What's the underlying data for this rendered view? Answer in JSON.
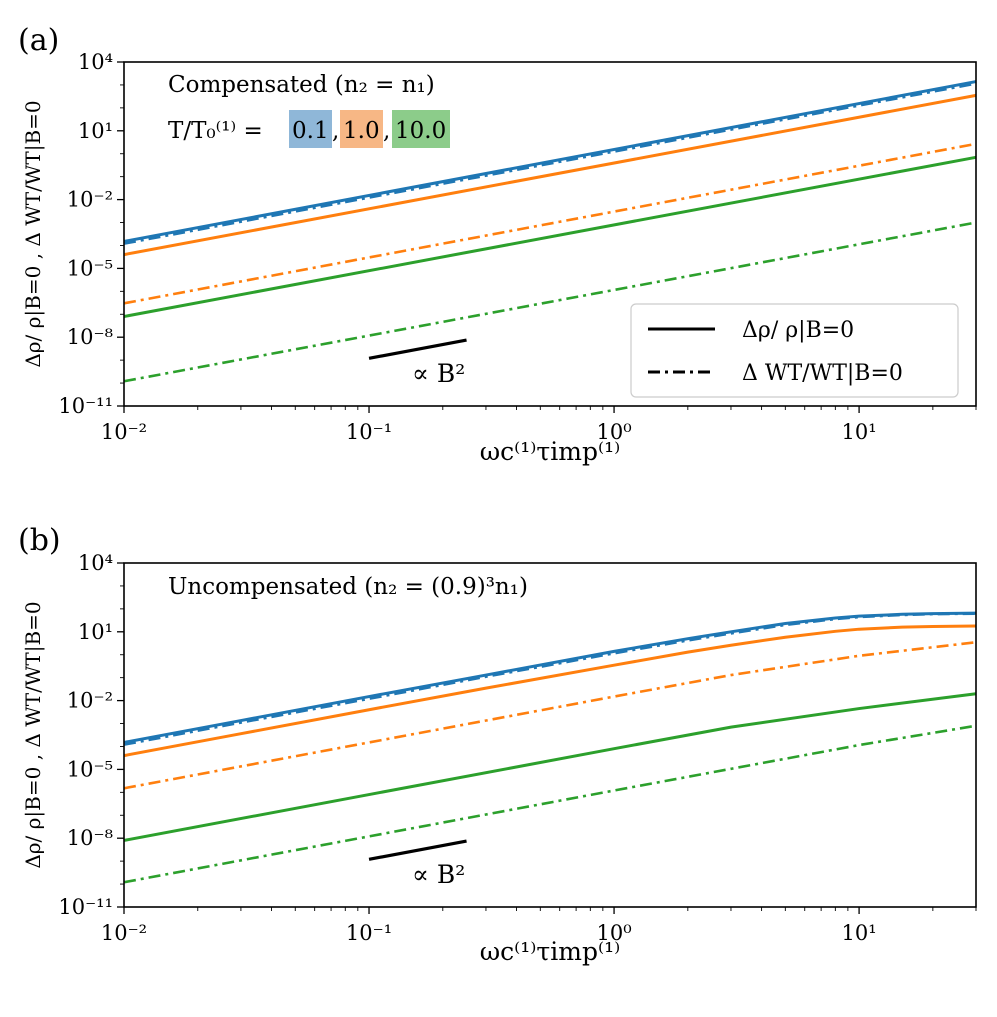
{
  "figure": {
    "panels": [
      {
        "id": "a",
        "panel_label": "(a)",
        "subtitle": "Compensated (n₂ = n₁)",
        "temperature_prefix": "T/T₀⁽¹⁾ =",
        "temperature_values": [
          "0.1",
          "1.0",
          "10.0"
        ],
        "legend_title": "",
        "legend": [
          {
            "label": "Δρ/ ρ|B=0",
            "style": "solid"
          },
          {
            "label": "Δ WT/WT|B=0",
            "style": "dashdot"
          }
        ],
        "reference_slope_label": "∝ B²"
      },
      {
        "id": "b",
        "panel_label": "(b)",
        "subtitle": "Uncompensated (n₂ = (0.9)³n₁)",
        "reference_slope_label": "∝ B²"
      }
    ]
  },
  "colors": {
    "blue": "#1f77b4",
    "orange": "#ff7f0e",
    "green": "#2ca02c",
    "blue_highlight": "#8fb7d8",
    "orange_highlight": "#f7b785",
    "green_highlight": "#8ccc8a"
  },
  "chart_data": [
    {
      "type": "line",
      "panel": "(a)",
      "xscale": "log",
      "yscale": "log",
      "xlabel": "ωc⁽¹⁾τimp⁽¹⁾",
      "ylabel": "Δρ/ ρ|B=0 , Δ WT/WT|B=0",
      "xlim": [
        0.01,
        30
      ],
      "ylim": [
        1e-11,
        10000
      ],
      "xticks": [
        0.01,
        0.1,
        1,
        10
      ],
      "xtick_labels": [
        "10⁻²",
        "10⁻¹",
        "10⁰",
        "10¹"
      ],
      "yticks": [
        1e-11,
        1e-08,
        1e-05,
        0.01,
        10,
        10000
      ],
      "ytick_labels": [
        "10⁻¹¹",
        "10⁻⁸",
        "10⁻⁵",
        "10⁻²",
        "10¹",
        "10⁴"
      ],
      "grid": false,
      "legend_position": "lower-right",
      "series": [
        {
          "color": "blue",
          "style": "solid",
          "x": [
            0.01,
            30
          ],
          "y": [
            0.00015,
            1400
          ]
        },
        {
          "color": "blue",
          "style": "dashdot",
          "x": [
            0.01,
            30
          ],
          "y": [
            0.00012,
            1150
          ]
        },
        {
          "color": "orange",
          "style": "solid",
          "x": [
            0.01,
            30
          ],
          "y": [
            4e-05,
            350
          ]
        },
        {
          "color": "orange",
          "style": "dashdot",
          "x": [
            0.01,
            30
          ],
          "y": [
            3e-07,
            2.7
          ]
        },
        {
          "color": "green",
          "style": "solid",
          "x": [
            0.01,
            30
          ],
          "y": [
            8e-08,
            0.7
          ]
        },
        {
          "color": "green",
          "style": "dashdot",
          "x": [
            0.01,
            30
          ],
          "y": [
            1.2e-10,
            0.001
          ]
        }
      ],
      "reference_segment": {
        "x": [
          0.1,
          0.25
        ],
        "y": [
          1.2e-09,
          7.5e-09
        ]
      }
    },
    {
      "type": "line",
      "panel": "(b)",
      "xscale": "log",
      "yscale": "log",
      "xlabel": "ωc⁽¹⁾τimp⁽¹⁾",
      "ylabel": "Δρ/ ρ|B=0 , Δ WT/WT|B=0",
      "xlim": [
        0.01,
        30
      ],
      "ylim": [
        1e-11,
        10000
      ],
      "xticks": [
        0.01,
        0.1,
        1,
        10
      ],
      "xtick_labels": [
        "10⁻²",
        "10⁻¹",
        "10⁰",
        "10¹"
      ],
      "yticks": [
        1e-11,
        1e-08,
        1e-05,
        0.01,
        10,
        10000
      ],
      "ytick_labels": [
        "10⁻¹¹",
        "10⁻⁸",
        "10⁻⁵",
        "10⁻²",
        "10¹",
        "10⁴"
      ],
      "grid": false,
      "series": [
        {
          "color": "blue",
          "style": "solid",
          "x": [
            0.01,
            0.03,
            0.1,
            0.3,
            1,
            2,
            3,
            5,
            8,
            10,
            15,
            20,
            30
          ],
          "y": [
            0.00015,
            0.00135,
            0.015,
            0.13,
            1.4,
            5,
            10,
            23,
            40,
            48,
            58,
            62,
            65
          ]
        },
        {
          "color": "blue",
          "style": "dashdot",
          "x": [
            0.01,
            0.03,
            0.1,
            0.3,
            1,
            2,
            3,
            5,
            8,
            10,
            15,
            20,
            30
          ],
          "y": [
            0.00012,
            0.0011,
            0.012,
            0.11,
            1.15,
            4.2,
            8.5,
            20,
            36,
            44,
            54,
            59,
            62
          ]
        },
        {
          "color": "orange",
          "style": "solid",
          "x": [
            0.01,
            0.03,
            0.1,
            0.3,
            1,
            2,
            3,
            5,
            8,
            10,
            15,
            20,
            30
          ],
          "y": [
            4e-05,
            0.00036,
            0.004,
            0.035,
            0.35,
            1.3,
            2.6,
            5.8,
            10.5,
            13,
            16,
            17,
            18
          ]
        },
        {
          "color": "orange",
          "style": "dashdot",
          "x": [
            0.01,
            0.1,
            1,
            3,
            10,
            30
          ],
          "y": [
            1.5e-06,
            0.00015,
            0.015,
            0.13,
            0.9,
            3.5
          ]
        },
        {
          "color": "green",
          "style": "solid",
          "x": [
            0.01,
            0.1,
            1,
            3,
            10,
            30
          ],
          "y": [
            8e-09,
            8e-07,
            8e-05,
            0.0007,
            0.0045,
            0.02
          ]
        },
        {
          "color": "green",
          "style": "dashdot",
          "x": [
            0.01,
            0.1,
            1,
            10,
            30
          ],
          "y": [
            1.2e-10,
            1.2e-08,
            1.2e-06,
            0.000115,
            0.0008
          ]
        }
      ],
      "reference_segment": {
        "x": [
          0.1,
          0.25
        ],
        "y": [
          1.2e-09,
          7.5e-09
        ]
      }
    }
  ]
}
